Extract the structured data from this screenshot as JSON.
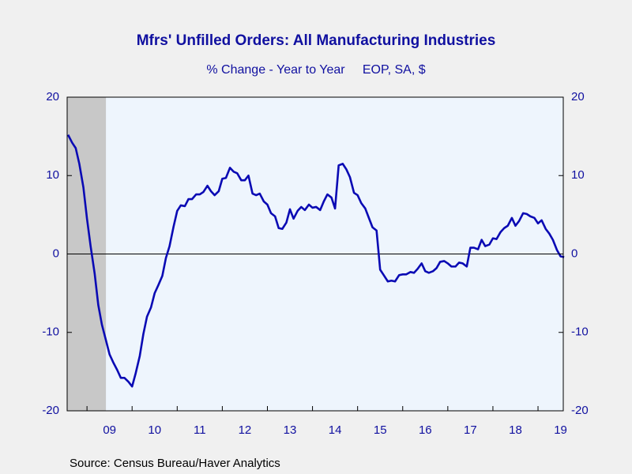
{
  "chart_data": {
    "type": "line",
    "title": "Mfrs' Unfilled Orders: All Manufacturing Industries",
    "subtitle": "% Change - Year to Year     EOP, SA, $",
    "source": "Source:  Census Bureau/Haver Analytics",
    "color": "#0a0ab4",
    "xlim": [
      2008.56,
      2019.56
    ],
    "ylim": [
      -20,
      20
    ],
    "yticks": [
      -20,
      -10,
      0,
      10,
      20
    ],
    "y2lim": [
      -20,
      20
    ],
    "y2ticks": [
      -20,
      -10,
      0,
      10,
      20
    ],
    "zero_line": true,
    "shaded": [
      [
        2008.56,
        2009.42
      ]
    ],
    "xticks": [
      {
        "value": 2009,
        "label": "09"
      },
      {
        "value": 2010,
        "label": "10"
      },
      {
        "value": 2011,
        "label": "11"
      },
      {
        "value": 2012,
        "label": "12"
      },
      {
        "value": 2013,
        "label": "13"
      },
      {
        "value": 2014,
        "label": "14"
      },
      {
        "value": 2015,
        "label": "15"
      },
      {
        "value": 2016,
        "label": "16"
      },
      {
        "value": 2017,
        "label": "17"
      },
      {
        "value": 2018,
        "label": "18"
      },
      {
        "value": 2019,
        "label": "19"
      }
    ],
    "x": [
      2008.58,
      2008.67,
      2008.75,
      2008.83,
      2008.92,
      2009.0,
      2009.08,
      2009.17,
      2009.25,
      2009.33,
      2009.42,
      2009.5,
      2009.58,
      2009.67,
      2009.75,
      2009.83,
      2009.92,
      2010.0,
      2010.08,
      2010.17,
      2010.25,
      2010.33,
      2010.42,
      2010.5,
      2010.58,
      2010.67,
      2010.75,
      2010.83,
      2010.92,
      2011.0,
      2011.08,
      2011.17,
      2011.25,
      2011.33,
      2011.42,
      2011.5,
      2011.58,
      2011.67,
      2011.75,
      2011.83,
      2011.92,
      2012.0,
      2012.08,
      2012.17,
      2012.25,
      2012.33,
      2012.42,
      2012.5,
      2012.58,
      2012.67,
      2012.75,
      2012.83,
      2012.92,
      2013.0,
      2013.08,
      2013.17,
      2013.25,
      2013.33,
      2013.42,
      2013.5,
      2013.58,
      2013.67,
      2013.75,
      2013.83,
      2013.92,
      2014.0,
      2014.08,
      2014.17,
      2014.25,
      2014.33,
      2014.42,
      2014.5,
      2014.58,
      2014.67,
      2014.75,
      2014.83,
      2014.92,
      2015.0,
      2015.08,
      2015.17,
      2015.25,
      2015.33,
      2015.42,
      2015.5,
      2015.58,
      2015.67,
      2015.75,
      2015.83,
      2015.92,
      2016.0,
      2016.08,
      2016.17,
      2016.25,
      2016.33,
      2016.42,
      2016.5,
      2016.58,
      2016.67,
      2016.75,
      2016.83,
      2016.92,
      2017.0,
      2017.08,
      2017.17,
      2017.25,
      2017.33,
      2017.42,
      2017.5,
      2017.58,
      2017.67,
      2017.75,
      2017.83,
      2017.92,
      2018.0,
      2018.08,
      2018.17,
      2018.25,
      2018.33,
      2018.42,
      2018.5,
      2018.58,
      2018.67,
      2018.75,
      2018.83,
      2018.92,
      2019.0,
      2019.08,
      2019.17,
      2019.25,
      2019.33,
      2019.42,
      2019.5,
      2019.58
    ],
    "values": [
      15.2,
      14.2,
      13.5,
      11.5,
      8.5,
      4.5,
      1,
      -2.5,
      -6.5,
      -9,
      -11,
      -12.8,
      -13.8,
      -14.8,
      -15.8,
      -15.8,
      -16.3,
      -16.9,
      -15.2,
      -13,
      -10.2,
      -8,
      -6.8,
      -5,
      -4,
      -2.8,
      -0.5,
      1,
      3.5,
      5.5,
      6.2,
      6.1,
      7,
      7,
      7.6,
      7.6,
      7.9,
      8.7,
      8,
      7.5,
      8,
      9.6,
      9.7,
      11,
      10.5,
      10.3,
      9.4,
      9.4,
      10,
      7.7,
      7.5,
      7.7,
      6.7,
      6.3,
      5.2,
      4.8,
      3.3,
      3.2,
      4,
      5.7,
      4.5,
      5.5,
      6,
      5.6,
      6.3,
      5.9,
      6,
      5.6,
      6.7,
      7.6,
      7.2,
      5.8,
      11.3,
      11.5,
      10.8,
      9.8,
      7.8,
      7.5,
      6.5,
      5.8,
      4.6,
      3.4,
      3,
      -2,
      -2.7,
      -3.5,
      -3.4,
      -3.5,
      -2.7,
      -2.6,
      -2.6,
      -2.3,
      -2.4,
      -1.9,
      -1.2,
      -2.2,
      -2.4,
      -2.2,
      -1.8,
      -1,
      -0.9,
      -1.2,
      -1.6,
      -1.6,
      -1.1,
      -1.2,
      -1.6,
      0.8,
      0.8,
      0.6,
      1.8,
      1,
      1.2,
      2,
      1.9,
      2.8,
      3.3,
      3.6,
      4.6,
      3.6,
      4.2,
      5.2,
      5.1,
      4.8,
      4.6,
      3.9,
      4.3,
      3.2,
      2.6,
      1.8,
      0.5,
      -0.3,
      -0.4
    ]
  }
}
